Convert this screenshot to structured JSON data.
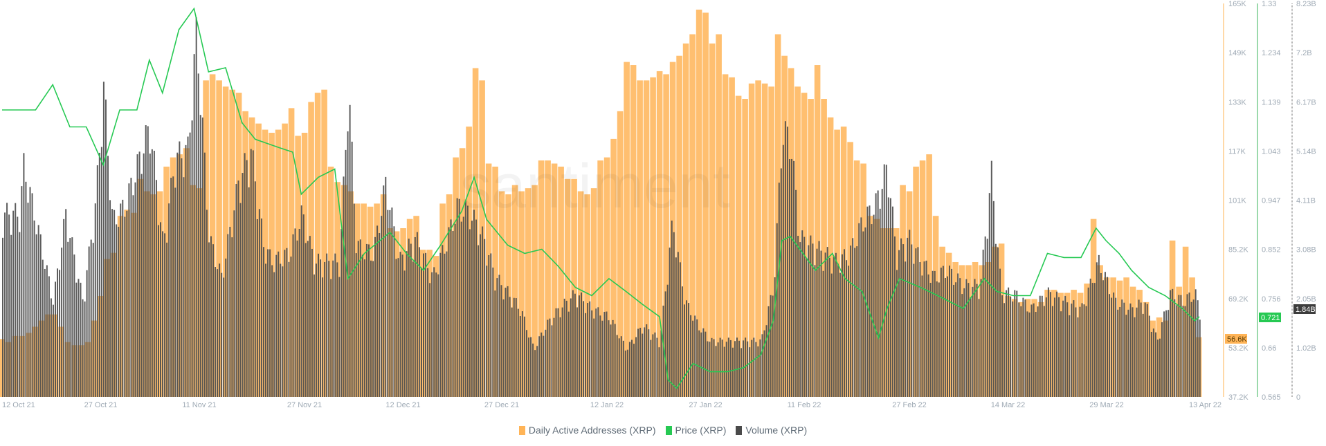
{
  "colors": {
    "daa": "#ffb457",
    "price": "#26c953",
    "volume": "#4a4a4a",
    "axis_text": "#9faab5"
  },
  "watermark": "santiment",
  "chart_data": {
    "type": "bar",
    "x_tick_labels": [
      "12 Oct 21",
      "27 Oct 21",
      "11 Nov 21",
      "27 Nov 21",
      "12 Dec 21",
      "27 Dec 21",
      "12 Jan 22",
      "27 Jan 22",
      "11 Feb 22",
      "27 Feb 22",
      "14 Mar 22",
      "29 Mar 22",
      "13 Apr 22"
    ],
    "x_tick_days": [
      0,
      15,
      30,
      46,
      61,
      76,
      92,
      107,
      122,
      138,
      153,
      168,
      183
    ],
    "legend_placement": "bottom",
    "axes": {
      "daa": {
        "ticks": [
          "165K",
          "149K",
          "133K",
          "117K",
          "101K",
          "85.2K",
          "69.2K",
          "53.2K",
          "37.2K"
        ],
        "range": [
          37.2,
          165
        ],
        "current_label": "56.6K"
      },
      "price": {
        "ticks": [
          "1.33",
          "1.234",
          "1.139",
          "1.043",
          "0.947",
          "0.852",
          "0.756",
          "0.66",
          "0.565"
        ],
        "range": [
          0.565,
          1.33
        ],
        "current_label": "0.721"
      },
      "volume": {
        "ticks": [
          "8.23B",
          "7.2B",
          "6.17B",
          "5.14B",
          "4.11B",
          "3.08B",
          "2.05B",
          "1.02B",
          "0"
        ],
        "range": [
          0,
          8.23
        ],
        "current_label": "1.84B"
      }
    },
    "series": [
      {
        "name": "Daily Active Addresses (XRP)",
        "type": "bar",
        "unit": "K",
        "values": [
          56,
          55,
          57,
          57,
          58,
          60,
          62,
          64,
          64,
          60,
          55,
          54,
          54,
          55,
          62,
          70,
          82,
          84,
          96,
          98,
          97,
          108,
          104,
          103,
          104,
          112,
          115,
          116,
          118,
          106,
          105,
          140,
          142,
          140,
          138,
          137,
          136,
          130,
          128,
          126,
          124,
          123,
          124,
          126,
          131,
          122,
          123,
          133,
          136,
          137,
          112,
          107,
          106,
          104,
          100,
          100,
          99,
          100,
          103,
          92,
          91,
          92,
          95,
          96,
          85,
          85,
          83,
          100,
          103,
          115,
          118,
          125,
          144,
          140,
          113,
          112,
          104,
          103,
          106,
          104,
          105,
          106,
          114,
          114,
          113,
          112,
          108,
          108,
          104,
          103,
          105,
          114,
          115,
          121,
          130,
          146,
          145,
          140,
          140,
          141,
          143,
          142,
          146,
          148,
          152,
          155,
          163,
          162,
          152,
          155,
          142,
          141,
          135,
          134,
          139,
          140,
          139,
          138,
          155,
          148,
          144,
          138,
          136,
          134,
          145,
          134,
          128,
          124,
          125,
          120,
          114,
          113,
          96,
          95,
          92,
          92,
          92,
          106,
          104,
          112,
          114,
          116,
          96,
          86,
          84,
          81,
          80,
          80,
          81,
          80,
          81,
          86,
          87,
          70,
          69,
          68,
          69,
          69,
          68,
          72,
          72,
          71,
          71,
          72,
          71,
          74,
          95,
          80,
          76,
          76,
          75,
          76,
          73,
          72,
          68,
          62,
          63,
          62,
          88,
          73,
          86,
          76,
          56.6
        ]
      },
      {
        "name": "Price (XRP)",
        "type": "line",
        "unit": "USD",
        "points": [
          [
            0,
            1.123
          ],
          [
            2.6,
            1.123
          ],
          [
            5.1,
            1.123
          ],
          [
            7.7,
            1.172
          ],
          [
            10.3,
            1.09
          ],
          [
            12.8,
            1.09
          ],
          [
            15.4,
            1.016
          ],
          [
            17.9,
            1.123
          ],
          [
            20.5,
            1.123
          ],
          [
            22.4,
            1.22
          ],
          [
            24.4,
            1.156
          ],
          [
            26.9,
            1.279
          ],
          [
            29.2,
            1.32
          ],
          [
            31.4,
            1.197
          ],
          [
            34,
            1.205
          ],
          [
            36.5,
            1.098
          ],
          [
            38.5,
            1.066
          ],
          [
            42.3,
            1.049
          ],
          [
            44.2,
            1.041
          ],
          [
            45.5,
            0.959
          ],
          [
            48.1,
            0.992
          ],
          [
            50.6,
            1.008
          ],
          [
            52.6,
            0.795
          ],
          [
            55.1,
            0.844
          ],
          [
            59,
            0.885
          ],
          [
            61.5,
            0.844
          ],
          [
            64.1,
            0.811
          ],
          [
            66.7,
            0.86
          ],
          [
            69.9,
            0.926
          ],
          [
            71.8,
            0.992
          ],
          [
            73.7,
            0.91
          ],
          [
            76.9,
            0.86
          ],
          [
            79.5,
            0.844
          ],
          [
            82.1,
            0.852
          ],
          [
            84.6,
            0.819
          ],
          [
            87.2,
            0.778
          ],
          [
            89.7,
            0.762
          ],
          [
            92.3,
            0.795
          ],
          [
            94.9,
            0.77
          ],
          [
            97.4,
            0.745
          ],
          [
            100,
            0.721
          ],
          [
            101.3,
            0.598
          ],
          [
            102.6,
            0.582
          ],
          [
            105.1,
            0.63
          ],
          [
            107.7,
            0.614
          ],
          [
            110.3,
            0.614
          ],
          [
            112.8,
            0.622
          ],
          [
            115.4,
            0.647
          ],
          [
            117.3,
            0.713
          ],
          [
            118.6,
            0.869
          ],
          [
            119.9,
            0.877
          ],
          [
            121.8,
            0.844
          ],
          [
            123.7,
            0.811
          ],
          [
            126.3,
            0.844
          ],
          [
            128.2,
            0.795
          ],
          [
            130.8,
            0.77
          ],
          [
            133.3,
            0.68
          ],
          [
            134.6,
            0.737
          ],
          [
            136.5,
            0.795
          ],
          [
            139.7,
            0.778
          ],
          [
            142.3,
            0.762
          ],
          [
            146.2,
            0.737
          ],
          [
            149.4,
            0.795
          ],
          [
            151.3,
            0.77
          ],
          [
            153.8,
            0.762
          ],
          [
            156.4,
            0.762
          ],
          [
            159,
            0.844
          ],
          [
            161.5,
            0.836
          ],
          [
            164.1,
            0.836
          ],
          [
            166.4,
            0.893
          ],
          [
            167.9,
            0.869
          ],
          [
            169.9,
            0.844
          ],
          [
            171.8,
            0.811
          ],
          [
            174.4,
            0.778
          ],
          [
            176.9,
            0.762
          ],
          [
            179.5,
            0.737
          ],
          [
            181.4,
            0.713
          ],
          [
            182.1,
            0.721
          ]
        ]
      },
      {
        "name": "Volume (XRP)",
        "type": "bar",
        "unit": "B",
        "points": [
          [
            0,
            4.06
          ],
          [
            2.6,
            4.06
          ],
          [
            3.2,
            5.12
          ],
          [
            5.1,
            3.89
          ],
          [
            7.7,
            2.12
          ],
          [
            9.6,
            4.06
          ],
          [
            12.2,
            2.12
          ],
          [
            14.1,
            4.24
          ],
          [
            15.4,
            6.89
          ],
          [
            16.7,
            3.89
          ],
          [
            18.6,
            4.24
          ],
          [
            20.5,
            5.12
          ],
          [
            22.4,
            6.0
          ],
          [
            24.4,
            3.36
          ],
          [
            26.3,
            5.3
          ],
          [
            28.2,
            5.47
          ],
          [
            29.5,
            8.12
          ],
          [
            31.4,
            3.53
          ],
          [
            33.3,
            2.65
          ],
          [
            35.9,
            4.77
          ],
          [
            37.8,
            5.47
          ],
          [
            39.7,
            3.36
          ],
          [
            41,
            3.0
          ],
          [
            43.6,
            3.18
          ],
          [
            45.5,
            4.06
          ],
          [
            47.4,
            3.0
          ],
          [
            49.4,
            3.0
          ],
          [
            51.3,
            3.0
          ],
          [
            52.6,
            6.89
          ],
          [
            53.8,
            3.36
          ],
          [
            56.4,
            3.18
          ],
          [
            58.3,
            4.77
          ],
          [
            60.3,
            3.0
          ],
          [
            62.8,
            3.53
          ],
          [
            65.4,
            2.65
          ],
          [
            67.3,
            3.36
          ],
          [
            69.2,
            4.24
          ],
          [
            71.2,
            4.06
          ],
          [
            73.1,
            3.53
          ],
          [
            75,
            2.65
          ],
          [
            76.9,
            2.3
          ],
          [
            78.8,
            1.94
          ],
          [
            80.8,
            1.06
          ],
          [
            82.7,
            1.59
          ],
          [
            84.6,
            1.94
          ],
          [
            87.2,
            2.3
          ],
          [
            89.7,
            1.94
          ],
          [
            92.3,
            1.77
          ],
          [
            94.9,
            1.06
          ],
          [
            97.4,
            1.59
          ],
          [
            100,
            1.24
          ],
          [
            101.9,
            3.89
          ],
          [
            103.8,
            2.12
          ],
          [
            105.8,
            1.59
          ],
          [
            107.7,
            1.24
          ],
          [
            110.3,
            1.24
          ],
          [
            112.8,
            1.24
          ],
          [
            115.4,
            1.24
          ],
          [
            117.3,
            2.47
          ],
          [
            118.6,
            5.92
          ],
          [
            119.9,
            5.65
          ],
          [
            121.2,
            3.53
          ],
          [
            123.1,
            3.36
          ],
          [
            125,
            3.18
          ],
          [
            126.9,
            3.0
          ],
          [
            128.8,
            3.18
          ],
          [
            130.8,
            3.89
          ],
          [
            132.7,
            4.24
          ],
          [
            134.6,
            5.12
          ],
          [
            135.9,
            3.18
          ],
          [
            137.8,
            3.53
          ],
          [
            139.7,
            3.0
          ],
          [
            141.7,
            2.65
          ],
          [
            143.6,
            2.83
          ],
          [
            146.2,
            2.47
          ],
          [
            148.7,
            2.47
          ],
          [
            150.4,
            4.94
          ],
          [
            151.9,
            2.3
          ],
          [
            153.8,
            2.3
          ],
          [
            156.4,
            1.94
          ],
          [
            159,
            2.3
          ],
          [
            161.5,
            2.12
          ],
          [
            164.1,
            1.94
          ],
          [
            166.7,
            3.0
          ],
          [
            169.2,
            2.12
          ],
          [
            171.8,
            1.94
          ],
          [
            173.7,
            2.12
          ],
          [
            175.6,
            1.24
          ],
          [
            177.6,
            2.3
          ],
          [
            179.5,
            2.12
          ],
          [
            181.4,
            2.3
          ],
          [
            182.1,
            1.84
          ]
        ]
      }
    ]
  },
  "legend": [
    {
      "label": "Daily Active Addresses (XRP)"
    },
    {
      "label": "Price (XRP)"
    },
    {
      "label": "Volume (XRP)"
    }
  ]
}
